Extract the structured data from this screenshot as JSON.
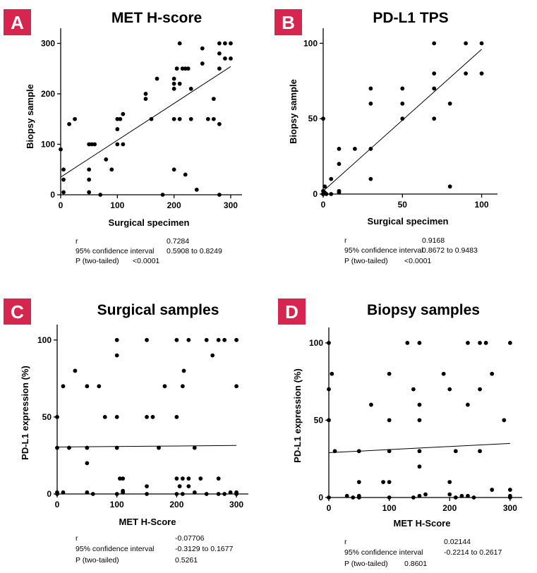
{
  "chart_data": [
    {
      "panel": "A",
      "type": "scatter",
      "title": "MET H-score",
      "xlabel": "Surgical specimen",
      "ylabel": "Biopsy sample",
      "xlim": [
        0,
        320
      ],
      "ylim": [
        0,
        330
      ],
      "xticks": [
        0,
        100,
        200,
        300
      ],
      "yticks": [
        0,
        100,
        200,
        300
      ],
      "regression": {
        "x": [
          0,
          300
        ],
        "y": [
          35,
          254
        ]
      },
      "points": [
        [
          0,
          90
        ],
        [
          5,
          50
        ],
        [
          5,
          30
        ],
        [
          5,
          5
        ],
        [
          15,
          140
        ],
        [
          25,
          150
        ],
        [
          50,
          100
        ],
        [
          55,
          100
        ],
        [
          50,
          50
        ],
        [
          50,
          30
        ],
        [
          50,
          5
        ],
        [
          60,
          100
        ],
        [
          70,
          0
        ],
        [
          80,
          70
        ],
        [
          90,
          50
        ],
        [
          100,
          150
        ],
        [
          100,
          130
        ],
        [
          100,
          100
        ],
        [
          105,
          150
        ],
        [
          110,
          160
        ],
        [
          110,
          100
        ],
        [
          150,
          200
        ],
        [
          150,
          190
        ],
        [
          160,
          150
        ],
        [
          170,
          230
        ],
        [
          180,
          0
        ],
        [
          200,
          230
        ],
        [
          200,
          220
        ],
        [
          200,
          210
        ],
        [
          200,
          150
        ],
        [
          200,
          50
        ],
        [
          205,
          250
        ],
        [
          210,
          300
        ],
        [
          210,
          220
        ],
        [
          210,
          150
        ],
        [
          215,
          250
        ],
        [
          220,
          250
        ],
        [
          220,
          40
        ],
        [
          225,
          250
        ],
        [
          230,
          210
        ],
        [
          230,
          150
        ],
        [
          240,
          10
        ],
        [
          250,
          290
        ],
        [
          250,
          260
        ],
        [
          260,
          150
        ],
        [
          270,
          190
        ],
        [
          270,
          150
        ],
        [
          280,
          300
        ],
        [
          280,
          280
        ],
        [
          280,
          250
        ],
        [
          280,
          140
        ],
        [
          280,
          0
        ],
        [
          290,
          300
        ],
        [
          290,
          270
        ],
        [
          300,
          300
        ],
        [
          300,
          270
        ]
      ],
      "stats": {
        "r_label": "r",
        "r": "0.7284",
        "ci_label": "95% confidence interval",
        "ci": "0.5908 to 0.8249",
        "p_label": "P (two-tailed)",
        "p": "<0.0001"
      }
    },
    {
      "panel": "B",
      "type": "scatter",
      "title": "PD-L1 TPS",
      "xlabel": "Surgical specimen",
      "ylabel": "Biopsy sample",
      "xlim": [
        0,
        110
      ],
      "ylim": [
        0,
        110
      ],
      "xticks": [
        0,
        50,
        100
      ],
      "yticks": [
        0,
        50,
        100
      ],
      "regression": {
        "x": [
          0,
          100
        ],
        "y": [
          2,
          96
        ]
      },
      "points": [
        [
          0,
          50
        ],
        [
          0,
          0
        ],
        [
          0,
          0
        ],
        [
          0,
          2
        ],
        [
          1,
          1
        ],
        [
          1,
          5
        ],
        [
          2,
          0
        ],
        [
          5,
          10
        ],
        [
          5,
          0
        ],
        [
          10,
          30
        ],
        [
          10,
          20
        ],
        [
          10,
          2
        ],
        [
          10,
          1
        ],
        [
          20,
          30
        ],
        [
          30,
          70
        ],
        [
          30,
          60
        ],
        [
          30,
          30
        ],
        [
          30,
          10
        ],
        [
          50,
          70
        ],
        [
          50,
          60
        ],
        [
          50,
          50
        ],
        [
          70,
          100
        ],
        [
          70,
          80
        ],
        [
          70,
          70
        ],
        [
          70,
          50
        ],
        [
          80,
          60
        ],
        [
          80,
          5
        ],
        [
          90,
          100
        ],
        [
          90,
          80
        ],
        [
          100,
          100
        ],
        [
          100,
          80
        ]
      ],
      "stats": {
        "r_label": "r",
        "r": "0.9168",
        "ci_label": "95% confidence interval",
        "ci": "0.8672 to 0.9483",
        "p_label": "P (two-tailed)",
        "p": "<0.0001"
      }
    },
    {
      "panel": "C",
      "type": "scatter",
      "title": "Surgical samples",
      "xlabel": "MET H-Score",
      "ylabel": "PD-L1 expression (%)",
      "xlim": [
        0,
        320
      ],
      "ylim": [
        0,
        110
      ],
      "xticks": [
        0,
        100,
        200,
        300
      ],
      "yticks": [
        0,
        50,
        100
      ],
      "regression": {
        "x": [
          0,
          300
        ],
        "y": [
          30.5,
          31.5
        ]
      },
      "points": [
        [
          0,
          50
        ],
        [
          0,
          30
        ],
        [
          0,
          1
        ],
        [
          0,
          0
        ],
        [
          10,
          70
        ],
        [
          10,
          1
        ],
        [
          20,
          30
        ],
        [
          30,
          80
        ],
        [
          50,
          70
        ],
        [
          50,
          30
        ],
        [
          50,
          20
        ],
        [
          50,
          1
        ],
        [
          60,
          0
        ],
        [
          70,
          70
        ],
        [
          80,
          50
        ],
        [
          100,
          100
        ],
        [
          100,
          90
        ],
        [
          100,
          50
        ],
        [
          100,
          30
        ],
        [
          100,
          0
        ],
        [
          105,
          10
        ],
        [
          110,
          10
        ],
        [
          110,
          2
        ],
        [
          110,
          1
        ],
        [
          150,
          100
        ],
        [
          150,
          50
        ],
        [
          150,
          5
        ],
        [
          150,
          0
        ],
        [
          160,
          50
        ],
        [
          170,
          30
        ],
        [
          180,
          70
        ],
        [
          200,
          100
        ],
        [
          200,
          50
        ],
        [
          200,
          10
        ],
        [
          200,
          0
        ],
        [
          205,
          5
        ],
        [
          210,
          70
        ],
        [
          210,
          10
        ],
        [
          210,
          0
        ],
        [
          212,
          80
        ],
        [
          220,
          100
        ],
        [
          220,
          10
        ],
        [
          220,
          5
        ],
        [
          230,
          30
        ],
        [
          230,
          1
        ],
        [
          240,
          10
        ],
        [
          250,
          100
        ],
        [
          250,
          0
        ],
        [
          260,
          90
        ],
        [
          270,
          100
        ],
        [
          270,
          10
        ],
        [
          270,
          0
        ],
        [
          280,
          100
        ],
        [
          280,
          0
        ],
        [
          290,
          1
        ],
        [
          300,
          100
        ],
        [
          300,
          70
        ],
        [
          300,
          1
        ],
        [
          300,
          0
        ]
      ],
      "stats": {
        "r_label": "r",
        "r": "-0.07706",
        "ci_label": "95% confidence interval",
        "ci": "-0.3129 to 0.1677",
        "p_label": "P (two-tailed)",
        "p": "0.5261"
      }
    },
    {
      "panel": "D",
      "type": "scatter",
      "title": "Biopsy samples",
      "xlabel": "MET H-Score",
      "ylabel": "PD-L1 expression (%)",
      "xlim": [
        0,
        320
      ],
      "ylim": [
        0,
        110
      ],
      "xticks": [
        0,
        100,
        200,
        300
      ],
      "yticks": [
        0,
        50,
        100
      ],
      "regression": {
        "x": [
          0,
          300
        ],
        "y": [
          29,
          35
        ]
      },
      "points": [
        [
          0,
          100
        ],
        [
          0,
          70
        ],
        [
          0,
          50
        ],
        [
          0,
          0
        ],
        [
          5,
          80
        ],
        [
          10,
          30
        ],
        [
          30,
          1
        ],
        [
          40,
          0
        ],
        [
          50,
          30
        ],
        [
          50,
          10
        ],
        [
          50,
          1
        ],
        [
          50,
          0
        ],
        [
          70,
          60
        ],
        [
          90,
          10
        ],
        [
          100,
          80
        ],
        [
          100,
          50
        ],
        [
          100,
          30
        ],
        [
          100,
          10
        ],
        [
          100,
          0
        ],
        [
          130,
          100
        ],
        [
          140,
          70
        ],
        [
          140,
          0
        ],
        [
          150,
          100
        ],
        [
          150,
          60
        ],
        [
          150,
          50
        ],
        [
          150,
          30
        ],
        [
          150,
          20
        ],
        [
          150,
          1
        ],
        [
          160,
          2
        ],
        [
          190,
          80
        ],
        [
          200,
          70
        ],
        [
          200,
          10
        ],
        [
          200,
          2
        ],
        [
          210,
          30
        ],
        [
          210,
          0
        ],
        [
          220,
          1
        ],
        [
          230,
          60
        ],
        [
          230,
          1
        ],
        [
          230,
          100
        ],
        [
          240,
          0
        ],
        [
          250,
          100
        ],
        [
          250,
          70
        ],
        [
          250,
          30
        ],
        [
          260,
          100
        ],
        [
          270,
          80
        ],
        [
          270,
          5
        ],
        [
          290,
          50
        ],
        [
          300,
          100
        ],
        [
          300,
          5
        ],
        [
          300,
          1
        ],
        [
          300,
          0
        ]
      ],
      "stats": {
        "r_label": "r",
        "r": "0.02144",
        "ci_label": "95% confidence interval",
        "ci": "-0.2214 to 0.2617",
        "p_label": "P (two-tailed)",
        "p": "0.8601"
      }
    }
  ]
}
